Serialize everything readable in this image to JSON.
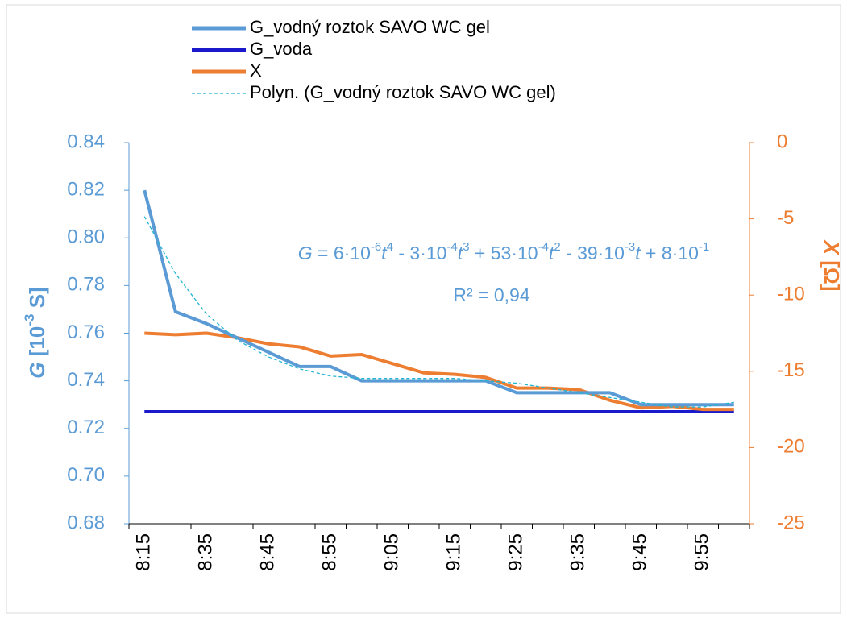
{
  "chart_data": {
    "type": "line",
    "categories": [
      "8:15",
      null,
      "8:35",
      null,
      "8:45",
      null,
      "8:55",
      null,
      "9:05",
      null,
      "9:15",
      null,
      "9:25",
      null,
      "9:35",
      null,
      "9:45",
      null,
      "9:55",
      null
    ],
    "series": [
      {
        "name": "G_vodný roztok SAVO WC gel",
        "color": "#5b9bd5",
        "values": [
          0.82,
          0.769,
          0.764,
          0.758,
          0.752,
          0.746,
          0.746,
          0.74,
          0.74,
          0.74,
          0.74,
          0.74,
          0.735,
          0.735,
          0.735,
          0.735,
          0.73,
          0.73,
          0.73,
          0.73
        ]
      },
      {
        "name": "G_voda",
        "color": "#1a1acc",
        "values": [
          0.727,
          0.727,
          0.727,
          0.727,
          0.727,
          0.727,
          0.727,
          0.727,
          0.727,
          0.727,
          0.727,
          0.727,
          0.727,
          0.727,
          0.727,
          0.727,
          0.727,
          0.727,
          0.727,
          0.727
        ]
      },
      {
        "name": "X",
        "color": "#ed7d31",
        "axis": "y2",
        "values": [
          -12.5,
          -12.6,
          -12.5,
          -12.8,
          -13.2,
          -13.4,
          -14.0,
          -13.9,
          -14.5,
          -15.1,
          -15.2,
          -15.4,
          -16.1,
          -16.1,
          -16.2,
          -16.9,
          -17.4,
          -17.3,
          -17.5,
          -17.5
        ]
      },
      {
        "name": "Polyn. (G_vodný roztok SAVO WC gel)",
        "color": "#1fb5d0",
        "dashed": true,
        "values": [
          0.809,
          0.785,
          0.768,
          0.757,
          0.75,
          0.745,
          0.742,
          0.741,
          0.741,
          0.741,
          0.741,
          0.74,
          0.739,
          0.737,
          0.735,
          0.733,
          0.731,
          0.729,
          0.729,
          0.731
        ]
      }
    ],
    "ylim": [
      0.68,
      0.84
    ],
    "yticks": [
      0.68,
      {
        "value": 0.7,
        "label": "0.70"
      },
      0.72,
      0.74,
      0.76,
      0.78,
      {
        "value": 0.8,
        "label": "0.80"
      },
      0.82,
      0.84
    ],
    "y2lim": [
      -25,
      0
    ],
    "y2ticks": [
      -25,
      -20,
      -15,
      -10,
      -5,
      0
    ],
    "ylabel": [
      "G",
      " [10",
      "-3",
      " S]"
    ],
    "y2label": [
      "X",
      " [Ω]"
    ],
    "annotation": [
      "G",
      " = 6·10",
      "-6",
      "t",
      "4",
      " - 3·10",
      "-4",
      "t",
      "3",
      " + 53·10",
      "-4",
      "t",
      "2",
      " - 39·10",
      "-3",
      "t",
      " + 8·10",
      "-1"
    ],
    "r2": "R² = 0,94"
  }
}
